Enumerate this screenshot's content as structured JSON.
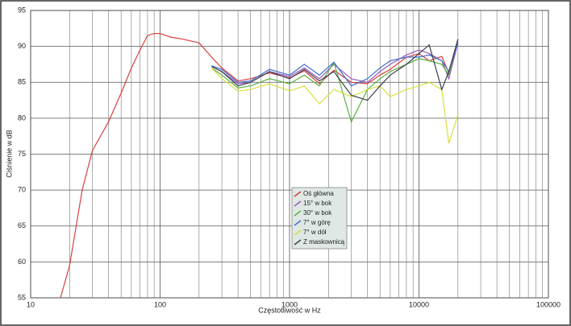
{
  "chart_data": {
    "type": "line",
    "xlabel": "Częstotliwość w Hz",
    "ylabel": "Ciśnienie w dB",
    "log_x": true,
    "grid": true,
    "minor_grid": true,
    "legend": "center",
    "xlim": [
      10,
      100000
    ],
    "xticks": [
      10,
      100,
      1000,
      10000,
      100000
    ],
    "ylim": [
      55,
      95
    ],
    "yticks": [
      55,
      60,
      65,
      70,
      75,
      80,
      85,
      90,
      95
    ],
    "x": [
      17,
      20,
      25,
      30,
      40,
      50,
      60,
      70,
      80,
      90,
      100,
      120,
      150,
      200,
      250,
      300,
      400,
      500,
      700,
      1000,
      1300,
      1700,
      2200,
      3000,
      4000,
      5000,
      6000,
      8000,
      10000,
      12000,
      15000,
      17000,
      20000
    ],
    "series": [
      {
        "name": "Oś główna",
        "color": "#d84040",
        "values": [
          55,
          59.5,
          70,
          75.5,
          79.5,
          83.5,
          87,
          89.5,
          91.5,
          91.8,
          91.8,
          91.3,
          91,
          90.5,
          88.5,
          87,
          85.2,
          85.5,
          86.3,
          85.6,
          86.6,
          84.8,
          86.7,
          85,
          84.8,
          86,
          86.8,
          88.5,
          89,
          88,
          88.6,
          86.3,
          91
        ]
      },
      {
        "name": "15° w bok",
        "color": "#9a5ab8",
        "values": [
          null,
          null,
          null,
          null,
          null,
          null,
          null,
          null,
          null,
          null,
          null,
          null,
          null,
          null,
          87.2,
          86.5,
          84.8,
          85,
          86.5,
          85.8,
          87,
          85.5,
          87.5,
          85.5,
          85,
          86.5,
          87.5,
          88.8,
          89.5,
          89,
          88,
          85.5,
          90.5
        ]
      },
      {
        "name": "30° w bok",
        "color": "#58b040",
        "values": [
          null,
          null,
          null,
          null,
          null,
          null,
          null,
          null,
          null,
          null,
          null,
          null,
          null,
          null,
          87,
          86,
          84.2,
          84.5,
          85.5,
          84.8,
          86,
          84.5,
          87.8,
          79.5,
          84,
          85.5,
          86.5,
          87.5,
          88.3,
          88,
          87.5,
          86,
          91
        ]
      },
      {
        "name": "7° w górę",
        "color": "#4070d0",
        "values": [
          null,
          null,
          null,
          null,
          null,
          null,
          null,
          null,
          null,
          null,
          null,
          null,
          null,
          null,
          87.3,
          86.8,
          85,
          85.2,
          86.8,
          86,
          87.5,
          86,
          87.8,
          84.5,
          85.5,
          87,
          88,
          88.5,
          88.5,
          88.8,
          88,
          86.5,
          90.5
        ]
      },
      {
        "name": "7° w dół",
        "color": "#d8e040",
        "values": [
          null,
          null,
          null,
          null,
          null,
          null,
          null,
          null,
          null,
          null,
          null,
          null,
          null,
          null,
          87,
          85.5,
          83.8,
          84,
          84.8,
          83.8,
          84.5,
          82,
          84,
          83,
          84,
          84.5,
          83,
          84,
          84.5,
          85,
          84,
          76.5,
          80.5
        ]
      },
      {
        "name": "Z maskownicą",
        "color": "#404050",
        "values": [
          null,
          null,
          null,
          null,
          null,
          null,
          null,
          null,
          null,
          null,
          null,
          null,
          null,
          null,
          87.2,
          86.5,
          84.5,
          85,
          86.5,
          85.5,
          86.8,
          85.2,
          86.5,
          83.2,
          82.5,
          84.5,
          86,
          87.5,
          89,
          90.2,
          84,
          86.5,
          91
        ]
      }
    ]
  }
}
